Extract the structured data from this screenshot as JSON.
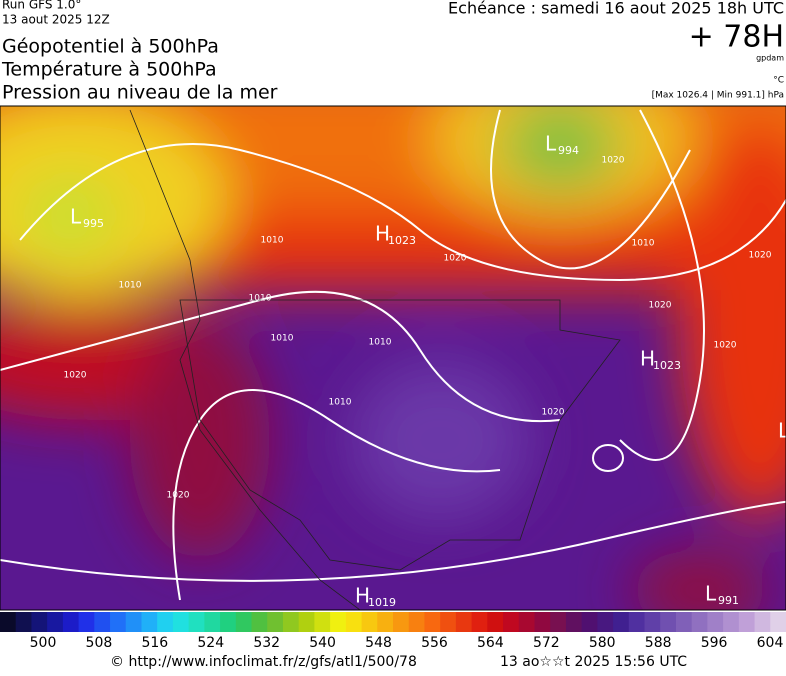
{
  "header": {
    "run": "Run GFS 1.0°",
    "run_date": "13 aout 2025 12Z",
    "titles": [
      "Géopotentiel à 500hPa",
      "Température à 500hPa",
      "Pression au niveau de la mer"
    ],
    "valid": "Echéance : samedi 16 aout 2025 18h UTC",
    "lead": "+ 78H",
    "unit_geo": "gpdam",
    "unit_temp": "°C",
    "pressure_range": "[Max 1026.4 | Min 991.1] hPa"
  },
  "map": {
    "centers": [
      {
        "letter": "L",
        "value": "995"
      },
      {
        "letter": "H",
        "value": "1023"
      },
      {
        "letter": "L",
        "value": "994"
      },
      {
        "letter": "H",
        "value": "1023"
      },
      {
        "letter": "L",
        "value": "991"
      },
      {
        "letter": "H",
        "value": "1019"
      },
      {
        "letter": "L",
        "value": null
      }
    ],
    "isobar_labels": [
      "1010",
      "1010",
      "1010",
      "1010",
      "1010",
      "1010",
      "1010",
      "1020",
      "1020",
      "1020",
      "1020",
      "1020",
      "1020",
      "1020",
      "1020"
    ]
  },
  "colorbar": {
    "colors": [
      "#0a0a2a",
      "#101050",
      "#141478",
      "#1818a0",
      "#1c1cc8",
      "#2030e8",
      "#2050f0",
      "#2070f8",
      "#2090f8",
      "#20b0f8",
      "#20d0f0",
      "#20e0e0",
      "#20e0c0",
      "#20d8a0",
      "#20d080",
      "#30c860",
      "#50c040",
      "#70c030",
      "#90c820",
      "#b0d010",
      "#d0e010",
      "#f0f010",
      "#f8e010",
      "#f8c810",
      "#f8b010",
      "#f89810",
      "#f88010",
      "#f86810",
      "#f05010",
      "#e83810",
      "#e02010",
      "#d01010",
      "#c00820",
      "#a80830",
      "#900840",
      "#781050",
      "#601060",
      "#501070",
      "#481880",
      "#402090",
      "#5030a0",
      "#6040a8",
      "#7050b0",
      "#8060b8",
      "#9070c0",
      "#a080c8",
      "#b090d0",
      "#c0a0d8",
      "#d0b8e0",
      "#e0d0e8"
    ],
    "labels": [
      500,
      508,
      516,
      524,
      532,
      540,
      548,
      556,
      564,
      572,
      580,
      588,
      596,
      604
    ]
  },
  "footer": {
    "source": "© http://www.infoclimat.fr/z/gfs/atl1/500/78",
    "issued": "13 ao☆☆t 2025 15:56 UTC"
  }
}
